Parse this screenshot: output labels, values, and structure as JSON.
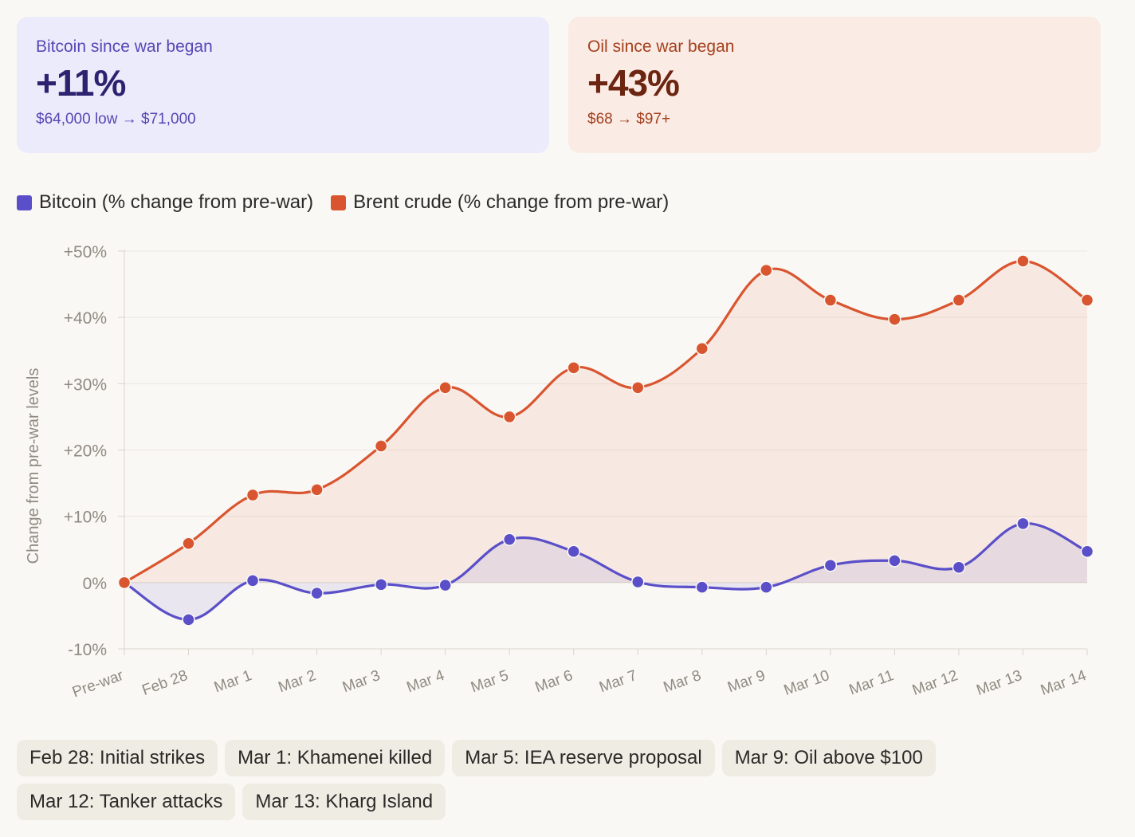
{
  "cards": {
    "bitcoin": {
      "label": "Bitcoin since war began",
      "value": "+11%",
      "detail": "$64,000 low → $71,000",
      "accent": "#5548b5"
    },
    "oil": {
      "label": "Oil since war began",
      "value": "+43%",
      "detail": "$68 → $97+",
      "accent": "#a5401d"
    }
  },
  "legend": [
    {
      "label": "Bitcoin (% change from pre-war)",
      "color": "#5a4fc8"
    },
    {
      "label": "Brent crude (% change from pre-war)",
      "color": "#d9552f"
    }
  ],
  "chart_data": {
    "type": "line",
    "title": "",
    "xlabel": "",
    "ylabel": "Change from pre-war levels",
    "x": [
      "Pre-war",
      "Feb 28",
      "Mar 1",
      "Mar 2",
      "Mar 3",
      "Mar 4",
      "Mar 5",
      "Mar 6",
      "Mar 7",
      "Mar 8",
      "Mar 9",
      "Mar 10",
      "Mar 11",
      "Mar 12",
      "Mar 13",
      "Mar 14"
    ],
    "ylim": [
      -10,
      50
    ],
    "yticks": [
      -10,
      0,
      10,
      20,
      30,
      40,
      50
    ],
    "ytick_labels": [
      "-10%",
      "0%",
      "+10%",
      "+20%",
      "+30%",
      "+40%",
      "+50%"
    ],
    "grid": true,
    "series": [
      {
        "name": "Bitcoin (% change from pre-war)",
        "color": "#5a4fc8",
        "values": [
          0,
          -5.6,
          0.3,
          -1.6,
          -0.3,
          -0.4,
          6.5,
          4.7,
          0.1,
          -0.7,
          -0.7,
          2.6,
          3.3,
          2.3,
          8.9,
          4.7
        ]
      },
      {
        "name": "Brent crude (% change from pre-war)",
        "color": "#d9552f",
        "values": [
          0,
          5.9,
          13.2,
          14.0,
          20.6,
          29.4,
          25.0,
          32.4,
          29.4,
          35.3,
          47.1,
          42.6,
          39.7,
          42.6,
          48.5,
          42.6
        ]
      }
    ]
  },
  "events": [
    "Feb 28: Initial strikes",
    "Mar 1: Khamenei killed",
    "Mar 5: IEA reserve proposal",
    "Mar 9: Oil above $100",
    "Mar 12: Tanker attacks",
    "Mar 13: Kharg Island"
  ]
}
